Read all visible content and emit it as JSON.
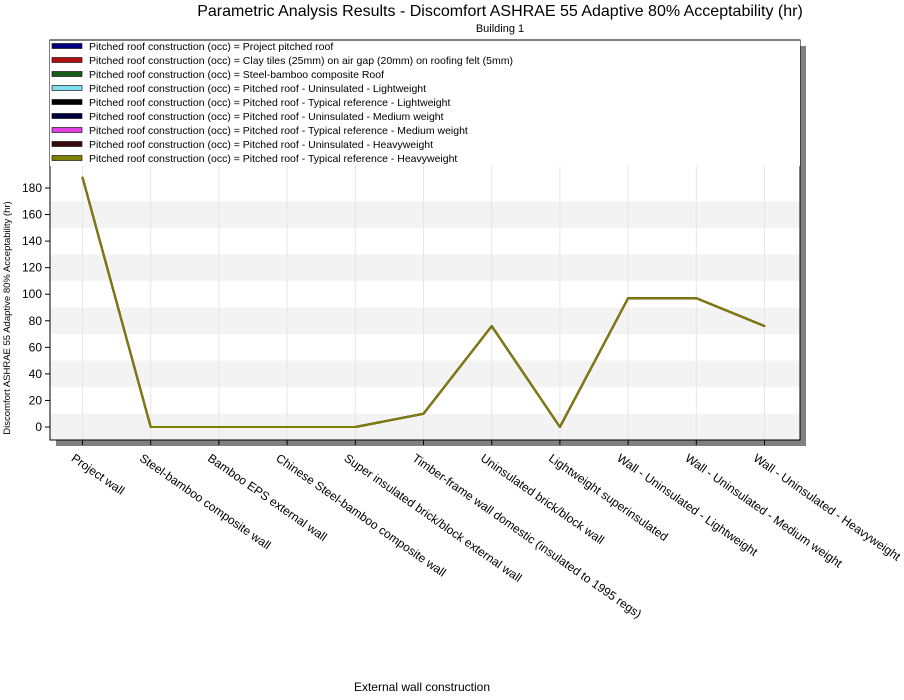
{
  "chart_data": {
    "type": "line",
    "title": "Parametric Analysis Results -  Discomfort ASHRAE 55 Adaptive 80% Acceptability (hr)",
    "subtitle": "Building 1",
    "xlabel": "External wall construction",
    "ylabel": "Discomfort ASHRAE 55 Adaptive 80% Acceptability (hr)",
    "ylim": [
      -10,
      195
    ],
    "yticks": [
      0,
      20,
      40,
      60,
      80,
      100,
      120,
      140,
      160,
      180
    ],
    "grid": "alternating horizontal bands",
    "legend_position": "top",
    "categories": [
      "Project wall",
      "Steel-bamboo composite wall",
      "Bamboo EPS external wall",
      "Chinese Steel-bamboo composite wall",
      "Super insulated brick/block external wall",
      "Timber-frame wall domestic (insulated to 1995 regs)",
      "Uninsulated brick/block wall",
      "Lightweight superinsulated",
      "Wall - Uninsulated - Lightweight",
      "Wall - Uninsulated - Medium weight",
      "Wall - Uninsulated - Heavyweight"
    ],
    "series": [
      {
        "name": "Pitched roof construction (occ) = Project pitched roof",
        "color": "#000080",
        "values": [
          188,
          0,
          0,
          0,
          0,
          10,
          76,
          0,
          97,
          97,
          76
        ]
      },
      {
        "name": "Pitched roof construction (occ) = Clay tiles (25mm) on air gap (20mm) on roofing felt (5mm)",
        "color": "#b01010",
        "values": [
          188,
          0,
          0,
          0,
          0,
          10,
          76,
          0,
          97,
          97,
          76
        ]
      },
      {
        "name": "Pitched roof construction (occ) = Steel-bamboo composite Roof",
        "color": "#1a5c1a",
        "values": [
          188,
          0,
          0,
          0,
          0,
          10,
          76,
          0,
          97,
          97,
          76
        ]
      },
      {
        "name": "Pitched roof construction (occ) = Pitched roof - Uninsulated - Lightweight",
        "color": "#7fe0f0",
        "values": [
          188,
          0,
          0,
          0,
          0,
          10,
          76,
          0,
          97,
          97,
          76
        ]
      },
      {
        "name": "Pitched roof construction (occ) = Pitched roof - Typical reference - Lightweight",
        "color": "#000000",
        "values": [
          188,
          0,
          0,
          0,
          0,
          10,
          76,
          0,
          97,
          97,
          76
        ]
      },
      {
        "name": "Pitched roof construction (occ) = Pitched roof - Uninsulated - Medium weight",
        "color": "#000040",
        "values": [
          188,
          0,
          0,
          0,
          0,
          10,
          76,
          0,
          97,
          97,
          76
        ]
      },
      {
        "name": "Pitched roof construction (occ) = Pitched roof - Typical reference - Medium weight",
        "color": "#e040e0",
        "values": [
          188,
          0,
          0,
          0,
          0,
          10,
          76,
          0,
          97,
          97,
          76
        ]
      },
      {
        "name": "Pitched roof construction (occ) = Pitched roof - Uninsulated - Heavyweight",
        "color": "#3a0a0a",
        "values": [
          188,
          0,
          0,
          0,
          0,
          10,
          76,
          0,
          97,
          97,
          76
        ]
      },
      {
        "name": "Pitched roof construction (occ) = Pitched roof - Typical reference - Heavyweight",
        "color": "#808000",
        "values": [
          188,
          0,
          0,
          0,
          0,
          10,
          76,
          0,
          97,
          97,
          76
        ]
      }
    ]
  }
}
